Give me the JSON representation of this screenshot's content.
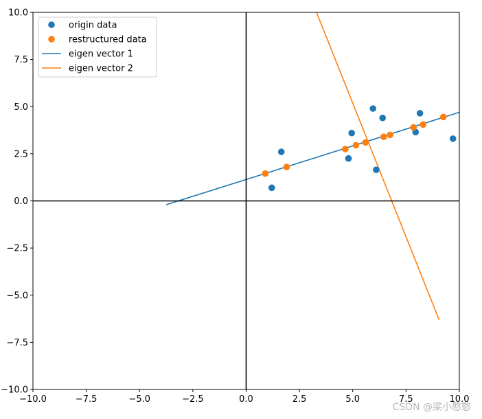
{
  "chart_data": {
    "type": "scatter",
    "xlim": [
      -10,
      10
    ],
    "ylim": [
      -10,
      10
    ],
    "xticks": [
      -10.0,
      -7.5,
      -5.0,
      -2.5,
      0.0,
      2.5,
      5.0,
      7.5,
      10.0
    ],
    "yticks": [
      -10.0,
      -7.5,
      -5.0,
      -2.5,
      0.0,
      2.5,
      5.0,
      7.5,
      10.0
    ],
    "xtick_labels": [
      "−10.0",
      "−7.5",
      "−5.0",
      "−2.5",
      "0.0",
      "2.5",
      "5.0",
      "7.5",
      "10.0"
    ],
    "ytick_labels": [
      "−10.0",
      "−7.5",
      "−5.0",
      "−2.5",
      "0.0",
      "2.5",
      "5.0",
      "7.5",
      "10.0"
    ],
    "grid": false,
    "legend_position": "top-left",
    "axis_lines": [
      {
        "name": "x-axis-line",
        "type": "horizontal",
        "at": 0,
        "color": "#000000"
      },
      {
        "name": "y-axis-line",
        "type": "vertical",
        "at": 0,
        "color": "#000000"
      }
    ],
    "series": [
      {
        "name": "origin data",
        "type": "scatter",
        "color": "#1f77b4",
        "points": [
          [
            1.2,
            0.7
          ],
          [
            1.65,
            2.6
          ],
          [
            4.8,
            2.25
          ],
          [
            4.95,
            3.6
          ],
          [
            5.95,
            4.9
          ],
          [
            6.4,
            4.4
          ],
          [
            6.1,
            1.65
          ],
          [
            7.95,
            3.65
          ],
          [
            8.15,
            4.65
          ],
          [
            9.7,
            3.3
          ]
        ]
      },
      {
        "name": "restructured data",
        "type": "scatter",
        "color": "#ff7f0e",
        "points": [
          [
            0.9,
            1.45
          ],
          [
            1.9,
            1.8
          ],
          [
            4.65,
            2.75
          ],
          [
            5.15,
            2.95
          ],
          [
            5.6,
            3.1
          ],
          [
            6.45,
            3.4
          ],
          [
            6.75,
            3.5
          ],
          [
            7.85,
            3.9
          ],
          [
            8.3,
            4.05
          ],
          [
            9.25,
            4.45
          ]
        ]
      },
      {
        "name": "eigen vector 1",
        "type": "line",
        "color": "#1f77b4",
        "points": [
          [
            -3.75,
            -0.2
          ],
          [
            10.0,
            4.7
          ]
        ]
      },
      {
        "name": "eigen vector 2",
        "type": "line",
        "color": "#ff7f0e",
        "points": [
          [
            3.3,
            10.0
          ],
          [
            9.05,
            -6.3
          ]
        ]
      }
    ]
  },
  "watermark": "CSDN @梁小憨憨"
}
